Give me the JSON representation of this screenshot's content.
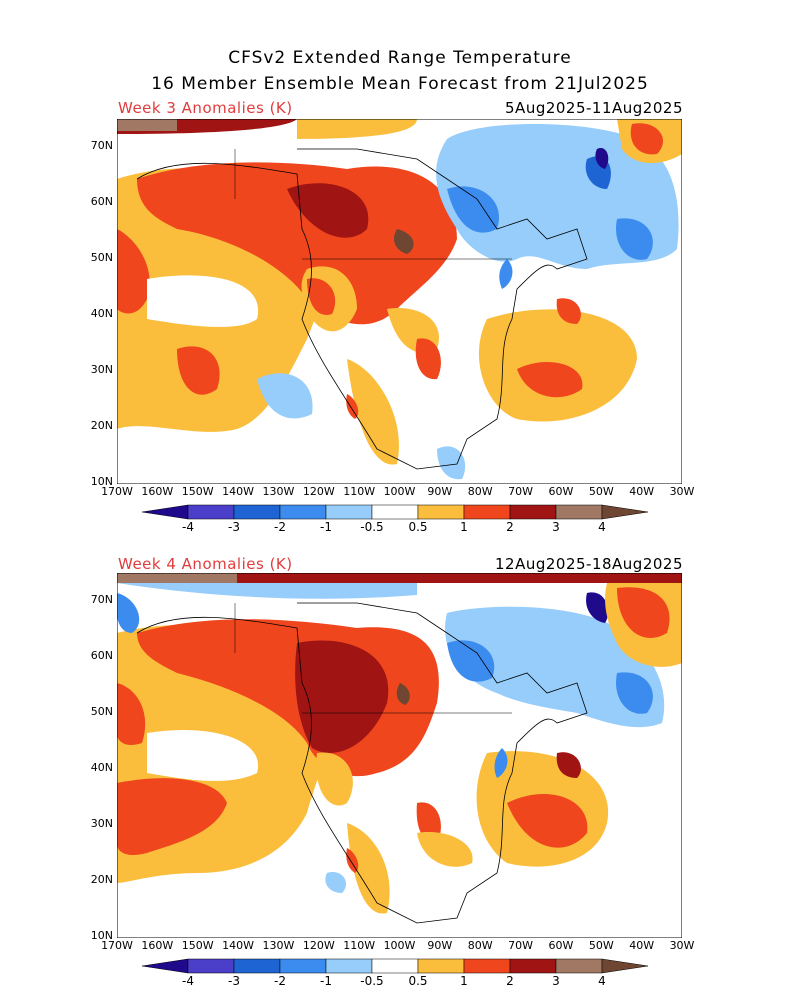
{
  "header": {
    "title_line1": "CFSv2 Extended Range Temperature",
    "title_line2": "16 Member Ensemble Mean Forecast from 21Jul2025"
  },
  "panels": [
    {
      "label": "Week 3 Anomalies (K)",
      "dates": "5Aug2025-11Aug2025"
    },
    {
      "label": "Week 4 Anomalies (K)",
      "dates": "12Aug2025-18Aug2025"
    }
  ],
  "lat_labels": [
    "70N",
    "60N",
    "50N",
    "40N",
    "30N",
    "20N",
    "10N"
  ],
  "lon_labels": [
    "170W",
    "160W",
    "150W",
    "140W",
    "130W",
    "120W",
    "110W",
    "100W",
    "90W",
    "80W",
    "70W",
    "60W",
    "50W",
    "40W",
    "30W"
  ],
  "colorbar": {
    "labels": [
      "-4",
      "-3",
      "-2",
      "-1",
      "-0.5",
      "0.5",
      "1",
      "2",
      "3",
      "4"
    ],
    "colors": [
      "#1f0a8c",
      "#4b3ec8",
      "#1e64d2",
      "#3c8cf0",
      "#96cdfa",
      "#ffffff",
      "#fabe3c",
      "#f0461e",
      "#a01414",
      "#a07864",
      "#6e4632"
    ]
  }
}
